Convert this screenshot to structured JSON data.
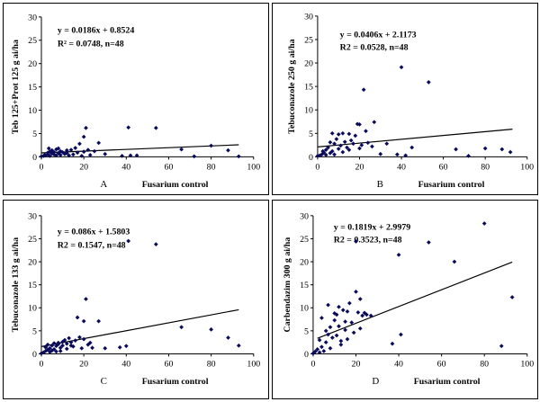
{
  "chart_data": [
    {
      "type": "scatter",
      "panel_label": "A",
      "xlabel": "Fusarium control",
      "ylabel": "Teb 125+Prot 125 g ai/ha",
      "xlim": [
        0,
        100
      ],
      "ylim": [
        0,
        30
      ],
      "xticks": [
        0,
        20,
        40,
        60,
        80,
        100
      ],
      "yticks": [
        0,
        5,
        10,
        15,
        20,
        25,
        30
      ],
      "equation": "y = 0.0186x + 0.8524",
      "r2_text": "R² = 0.0748, n=48",
      "trendline": {
        "slope": 0.0186,
        "intercept": 0.8524,
        "x_range": [
          0,
          93
        ]
      },
      "points": [
        [
          0,
          0.1
        ],
        [
          1,
          0.2
        ],
        [
          1.5,
          0.4
        ],
        [
          2,
          0.3
        ],
        [
          3,
          0.5
        ],
        [
          3,
          0.9
        ],
        [
          4,
          1.1
        ],
        [
          4,
          0.2
        ],
        [
          5,
          0.7
        ],
        [
          5,
          1.4
        ],
        [
          6,
          0.5
        ],
        [
          6,
          1.0
        ],
        [
          7,
          1.6
        ],
        [
          7,
          0.3
        ],
        [
          8,
          0.8
        ],
        [
          9,
          1.2
        ],
        [
          9,
          0.4
        ],
        [
          10,
          1.0
        ],
        [
          11,
          0.6
        ],
        [
          12,
          1.4
        ],
        [
          12,
          0.8
        ],
        [
          13,
          0.3
        ],
        [
          14,
          1.5
        ],
        [
          15,
          0.5
        ],
        [
          16,
          1.9
        ],
        [
          17,
          0.9
        ],
        [
          18,
          2.8
        ],
        [
          19,
          0.2
        ],
        [
          20,
          4.3
        ],
        [
          20,
          1.1
        ],
        [
          21,
          6.2
        ],
        [
          22,
          1.5
        ],
        [
          23,
          0.4
        ],
        [
          25,
          1.2
        ],
        [
          27,
          3.0
        ],
        [
          30,
          0.6
        ],
        [
          38,
          0.2
        ],
        [
          41,
          6.3
        ],
        [
          42,
          0.3
        ],
        [
          45,
          0.3
        ],
        [
          54,
          6.2
        ],
        [
          66,
          1.6
        ],
        [
          72,
          0.1
        ],
        [
          80,
          2.4
        ],
        [
          88,
          1.4
        ],
        [
          93,
          0.1
        ],
        [
          3.5,
          1.8
        ],
        [
          8,
          1.8
        ]
      ]
    },
    {
      "type": "scatter",
      "panel_label": "B",
      "xlabel": "Fusarium control",
      "ylabel": "Tebuconazole 250 g ai/ha",
      "xlim": [
        0,
        100
      ],
      "ylim": [
        0,
        30
      ],
      "xticks": [
        0,
        20,
        40,
        60,
        80,
        100
      ],
      "yticks": [
        0,
        5,
        10,
        15,
        20,
        25,
        30
      ],
      "equation": "y = 0.0406x + 2.1173",
      "r2_text": "R2 = 0.0528, n=48",
      "trendline": {
        "slope": 0.0406,
        "intercept": 2.1173,
        "x_range": [
          0,
          93
        ]
      },
      "points": [
        [
          0,
          0.2
        ],
        [
          1,
          0.3
        ],
        [
          2,
          0.5
        ],
        [
          3,
          0.9
        ],
        [
          4,
          1.5
        ],
        [
          4,
          0.4
        ],
        [
          5,
          2.0
        ],
        [
          6,
          0.8
        ],
        [
          6,
          3.1
        ],
        [
          7,
          1.2
        ],
        [
          8,
          2.8
        ],
        [
          8,
          0.5
        ],
        [
          9,
          3.8
        ],
        [
          10,
          1.7
        ],
        [
          10,
          4.8
        ],
        [
          11,
          2.4
        ],
        [
          12,
          5.0
        ],
        [
          12,
          1.0
        ],
        [
          13,
          3.2
        ],
        [
          14,
          2.0
        ],
        [
          15,
          1.5
        ],
        [
          16,
          3.5
        ],
        [
          17,
          2.8
        ],
        [
          18,
          4.5
        ],
        [
          19,
          7.0
        ],
        [
          20,
          6.9
        ],
        [
          20,
          1.8
        ],
        [
          21,
          2.5
        ],
        [
          22,
          14.3
        ],
        [
          23,
          5.5
        ],
        [
          24,
          3.0
        ],
        [
          26,
          2.2
        ],
        [
          27,
          7.4
        ],
        [
          30,
          0.6
        ],
        [
          38,
          0.5
        ],
        [
          40,
          19.1
        ],
        [
          42,
          0.3
        ],
        [
          45,
          2.0
        ],
        [
          53,
          15.9
        ],
        [
          66,
          1.6
        ],
        [
          72,
          0.2
        ],
        [
          80,
          1.8
        ],
        [
          88,
          1.6
        ],
        [
          92,
          1.0
        ],
        [
          2.5,
          1.2
        ],
        [
          7,
          5.0
        ],
        [
          15,
          4.9
        ],
        [
          33,
          2.8
        ]
      ]
    },
    {
      "type": "scatter",
      "panel_label": "C",
      "xlabel": "Fusarium control",
      "ylabel": "Tebuconazole 133 g ai/ha",
      "xlim": [
        0,
        100
      ],
      "ylim": [
        0,
        30
      ],
      "xticks": [
        0,
        20,
        40,
        60,
        80,
        100
      ],
      "yticks": [
        0,
        5,
        10,
        15,
        20,
        25,
        30
      ],
      "equation": "y = 0.086x + 1.5803",
      "r2_text": "R2 = 0.1547, n=48",
      "trendline": {
        "slope": 0.086,
        "intercept": 1.5803,
        "x_range": [
          0,
          93
        ]
      },
      "points": [
        [
          0,
          0.1
        ],
        [
          1,
          0.3
        ],
        [
          2,
          0.6
        ],
        [
          2,
          1.5
        ],
        [
          3,
          0.9
        ],
        [
          3,
          2.0
        ],
        [
          4,
          0.4
        ],
        [
          4,
          1.2
        ],
        [
          5,
          1.8
        ],
        [
          5,
          0.7
        ],
        [
          6,
          2.3
        ],
        [
          6,
          1.0
        ],
        [
          7,
          0.5
        ],
        [
          7,
          1.7
        ],
        [
          8,
          2.1
        ],
        [
          9,
          1.3
        ],
        [
          9,
          0.6
        ],
        [
          10,
          2.6
        ],
        [
          10,
          1.8
        ],
        [
          11,
          3.0
        ],
        [
          12,
          2.2
        ],
        [
          12,
          1.1
        ],
        [
          13,
          3.4
        ],
        [
          14,
          2.5
        ],
        [
          15,
          1.6
        ],
        [
          16,
          2.9
        ],
        [
          17,
          7.9
        ],
        [
          18,
          3.6
        ],
        [
          19,
          1.2
        ],
        [
          20,
          7.1
        ],
        [
          20,
          3.2
        ],
        [
          21,
          11.9
        ],
        [
          22,
          2.0
        ],
        [
          24,
          1.3
        ],
        [
          27,
          7.1
        ],
        [
          30,
          1.2
        ],
        [
          37,
          1.4
        ],
        [
          40,
          1.7
        ],
        [
          41,
          24.5
        ],
        [
          54,
          23.8
        ],
        [
          66,
          5.8
        ],
        [
          80,
          5.3
        ],
        [
          88,
          3.5
        ],
        [
          93,
          1.8
        ],
        [
          2,
          1.4
        ],
        [
          8,
          2.4
        ],
        [
          14,
          1.8
        ],
        [
          23,
          2.4
        ]
      ]
    },
    {
      "type": "scatter",
      "panel_label": "D",
      "xlabel": "Fusarium control",
      "ylabel": "Carbendazim 300 g ai/ha",
      "xlim": [
        0,
        100
      ],
      "ylim": [
        0,
        30
      ],
      "xticks": [
        0,
        20,
        40,
        60,
        80,
        100
      ],
      "yticks": [
        0,
        5,
        10,
        15,
        20,
        25,
        30
      ],
      "equation": "y = 0.1819x + 2.9979",
      "r2_text": "R2 = 0.3523, n=48",
      "trendline": {
        "slope": 0.1819,
        "intercept": 2.9979,
        "x_range": [
          2,
          93
        ]
      },
      "points": [
        [
          0,
          0.1
        ],
        [
          1,
          0.5
        ],
        [
          2,
          1.0
        ],
        [
          3,
          0.3
        ],
        [
          4,
          1.5
        ],
        [
          4,
          7.8
        ],
        [
          5,
          0.6
        ],
        [
          6,
          2.5
        ],
        [
          7,
          4.2
        ],
        [
          7,
          10.6
        ],
        [
          8,
          5.8
        ],
        [
          8,
          1.2
        ],
        [
          9,
          3.5
        ],
        [
          10,
          7.3
        ],
        [
          10,
          8.8
        ],
        [
          11,
          4.0
        ],
        [
          12,
          6.0
        ],
        [
          12,
          10.2
        ],
        [
          13,
          2.8
        ],
        [
          14,
          9.5
        ],
        [
          15,
          5.2
        ],
        [
          15,
          7.0
        ],
        [
          16,
          3.2
        ],
        [
          17,
          11.0
        ],
        [
          18,
          6.8
        ],
        [
          19,
          4.6
        ],
        [
          20,
          13.5
        ],
        [
          20,
          24.4
        ],
        [
          21,
          9.0
        ],
        [
          22,
          11.9
        ],
        [
          22,
          5.5
        ],
        [
          23,
          8.3
        ],
        [
          25,
          8.5
        ],
        [
          27,
          8.3
        ],
        [
          37,
          2.2
        ],
        [
          40,
          21.5
        ],
        [
          41,
          4.2
        ],
        [
          54,
          24.2
        ],
        [
          66,
          20.0
        ],
        [
          80,
          28.3
        ],
        [
          88,
          1.7
        ],
        [
          93,
          12.3
        ],
        [
          3,
          3.0
        ],
        [
          6,
          5.0
        ],
        [
          13,
          2.0
        ],
        [
          16,
          9.2
        ],
        [
          11,
          8.5
        ],
        [
          24,
          8.9
        ]
      ]
    }
  ]
}
